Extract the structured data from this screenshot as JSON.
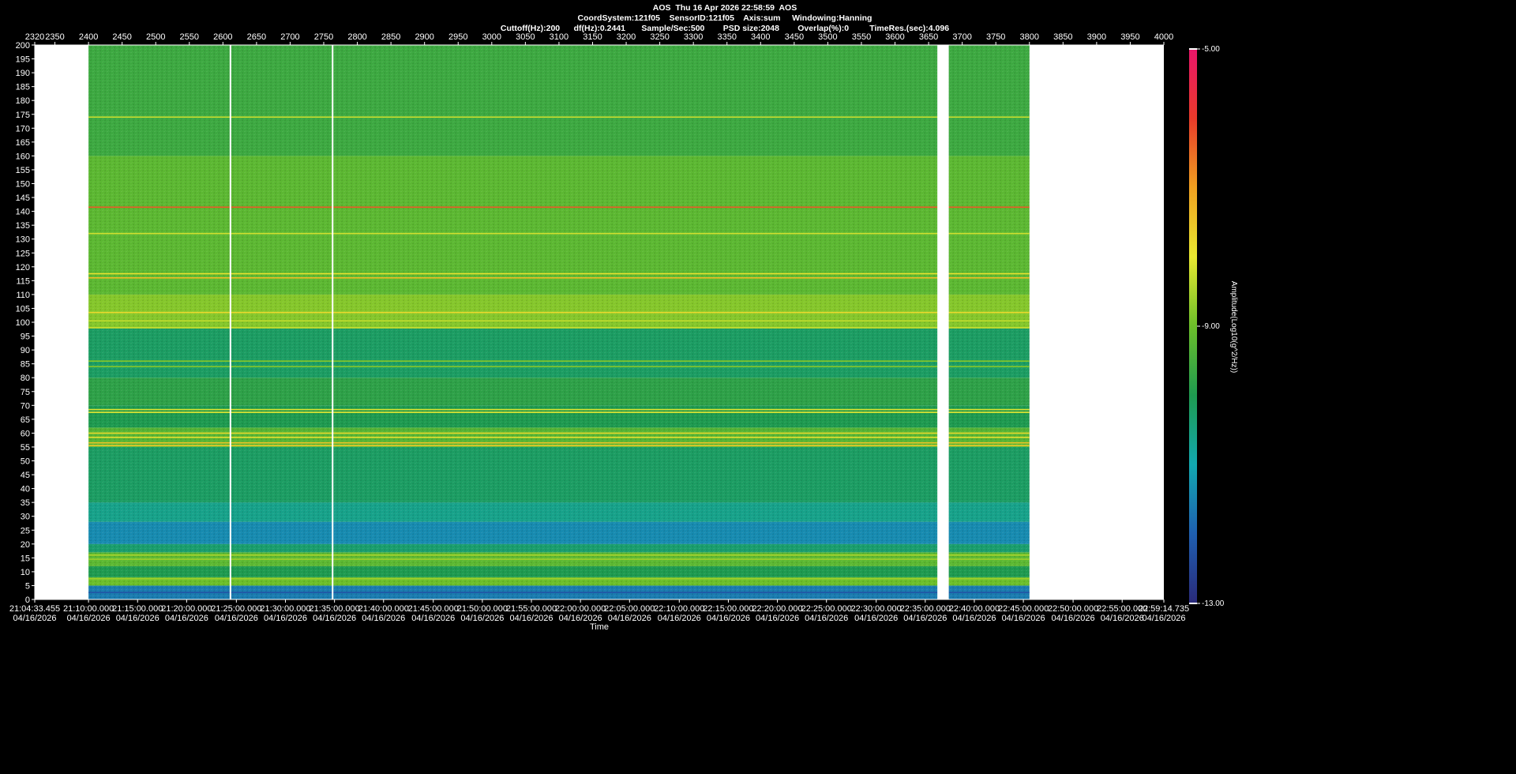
{
  "header": {
    "line1": "AOS  Thu 16 Apr 2026 22:58:59  AOS",
    "line2": "CoordSystem:121f05    SensorID:121f05    Axis:sum     Windowing:Hanning",
    "line3": "Cuttoff(Hz):200      df(Hz):0.2441       Sample/Sec:500        PSD size:2048        Overlap(%):0         TimeRes.(sec):4.096"
  },
  "chart_data": {
    "type": "heatmap",
    "title": "AOS  Thu 16 Apr 2026 22:58:59  AOS",
    "xlabel": "Time",
    "ylabel": "",
    "colorbar_label": "Amplitude(Log10(g^2/Hz))",
    "colorbar_range": [
      -13.0,
      -5.0
    ],
    "colorbar_ticks": [
      "-5.00",
      "-9.00",
      "-13.00"
    ],
    "colormap": [
      "#2a2a7a",
      "#1f5fb0",
      "#12a8b0",
      "#1e9a50",
      "#6cbf2a",
      "#e8e830",
      "#f0a020",
      "#e83a2a",
      "#e8156a"
    ],
    "ylim": [
      0,
      200
    ],
    "y_ticks": [
      0,
      5,
      10,
      15,
      20,
      25,
      30,
      35,
      40,
      45,
      50,
      55,
      60,
      65,
      70,
      75,
      80,
      85,
      90,
      95,
      100,
      105,
      110,
      115,
      120,
      125,
      130,
      135,
      140,
      145,
      150,
      155,
      160,
      165,
      170,
      175,
      180,
      185,
      190,
      195,
      200
    ],
    "top_x_range": [
      2320,
      4000
    ],
    "top_x_ticks": [
      2320,
      2350,
      2400,
      2450,
      2500,
      2550,
      2600,
      2650,
      2700,
      2750,
      2800,
      2850,
      2900,
      2950,
      3000,
      3050,
      3100,
      3150,
      3200,
      3250,
      3300,
      3350,
      3400,
      3450,
      3500,
      3550,
      3600,
      3650,
      3700,
      3750,
      3800,
      3850,
      3900,
      3950,
      4000
    ],
    "data_extent": [
      2400,
      3800
    ],
    "gaps": [
      [
        2610,
        2612
      ],
      [
        2762,
        2764
      ],
      [
        3663,
        3680
      ]
    ],
    "bottom_x_ticks": [
      {
        "at": 2320,
        "time": "21:04:33.455",
        "date": "04/16/2026"
      },
      {
        "at": 2400,
        "time": "21:10:00.000",
        "date": "04/16/2026"
      },
      {
        "at": 2473,
        "time": "21:15:00.000",
        "date": "04/16/2026"
      },
      {
        "at": 2546,
        "time": "21:20:00.000",
        "date": "04/16/2026"
      },
      {
        "at": 2620,
        "time": "21:25:00.000",
        "date": "04/16/2026"
      },
      {
        "at": 2693,
        "time": "21:30:00.000",
        "date": "04/16/2026"
      },
      {
        "at": 2766,
        "time": "21:35:00.000",
        "date": "04/16/2026"
      },
      {
        "at": 2839,
        "time": "21:40:00.000",
        "date": "04/16/2026"
      },
      {
        "at": 2913,
        "time": "21:45:00.000",
        "date": "04/16/2026"
      },
      {
        "at": 2986,
        "time": "21:50:00.000",
        "date": "04/16/2026"
      },
      {
        "at": 3059,
        "time": "21:55:00.000",
        "date": "04/16/2026"
      },
      {
        "at": 3132,
        "time": "22:00:00.000",
        "date": "04/16/2026"
      },
      {
        "at": 3205,
        "time": "22:05:00.000",
        "date": "04/16/2026"
      },
      {
        "at": 3279,
        "time": "22:10:00.000",
        "date": "04/16/2026"
      },
      {
        "at": 3352,
        "time": "22:15:00.000",
        "date": "04/16/2026"
      },
      {
        "at": 3425,
        "time": "22:20:00.000",
        "date": "04/16/2026"
      },
      {
        "at": 3498,
        "time": "22:25:00.000",
        "date": "04/16/2026"
      },
      {
        "at": 3572,
        "time": "22:30:00.000",
        "date": "04/16/2026"
      },
      {
        "at": 3645,
        "time": "22:35:00.000",
        "date": "04/16/2026"
      },
      {
        "at": 3718,
        "time": "22:40:00.000",
        "date": "04/16/2026"
      },
      {
        "at": 3791,
        "time": "22:45:00.000",
        "date": "04/16/2026"
      },
      {
        "at": 3865,
        "time": "22:50:00.000",
        "date": "04/16/2026"
      },
      {
        "at": 3938,
        "time": "22:55:00.000",
        "date": "04/16/2026"
      },
      {
        "at": 4000,
        "time": "22:59:14.735",
        "date": "04/16/2026"
      }
    ],
    "frequency_bands": [
      {
        "from": 0,
        "to": 5,
        "level": -11.6
      },
      {
        "from": 5,
        "to": 8,
        "level": -9.0
      },
      {
        "from": 8,
        "to": 12,
        "level": -10.0
      },
      {
        "from": 12,
        "to": 17,
        "level": -9.2
      },
      {
        "from": 17,
        "to": 20,
        "level": -10.3
      },
      {
        "from": 20,
        "to": 28,
        "level": -11.4
      },
      {
        "from": 28,
        "to": 35,
        "level": -10.6
      },
      {
        "from": 35,
        "to": 55,
        "level": -10.2
      },
      {
        "from": 55,
        "to": 62,
        "level": -9.3
      },
      {
        "from": 62,
        "to": 70,
        "level": -10.0
      },
      {
        "from": 70,
        "to": 80,
        "level": -9.8
      },
      {
        "from": 80,
        "to": 98,
        "level": -10.2
      },
      {
        "from": 98,
        "to": 110,
        "level": -8.8
      },
      {
        "from": 110,
        "to": 160,
        "level": -9.2
      },
      {
        "from": 160,
        "to": 200,
        "level": -9.6
      }
    ],
    "line_features": [
      {
        "freq": 2.5,
        "level": -12.2
      },
      {
        "freq": 7.5,
        "level": -8.6
      },
      {
        "freq": 14.5,
        "level": -8.6
      },
      {
        "freq": 16,
        "level": -8.5
      },
      {
        "freq": 55.5,
        "level": -7.6
      },
      {
        "freq": 56.5,
        "level": -7.5
      },
      {
        "freq": 58.5,
        "level": -7.9
      },
      {
        "freq": 60,
        "level": -7.8
      },
      {
        "freq": 67.5,
        "level": -8.0
      },
      {
        "freq": 68.5,
        "level": -8.1
      },
      {
        "freq": 84,
        "level": -8.8
      },
      {
        "freq": 86,
        "level": -8.8
      },
      {
        "freq": 98,
        "level": -8.2
      },
      {
        "freq": 100.5,
        "level": -8.3
      },
      {
        "freq": 103.5,
        "level": -7.8
      },
      {
        "freq": 116,
        "level": -7.4
      },
      {
        "freq": 117.5,
        "level": -7.9
      },
      {
        "freq": 132,
        "level": -8.2
      },
      {
        "freq": 141.5,
        "level": -6.3
      },
      {
        "freq": 174,
        "level": -8.2
      }
    ]
  }
}
